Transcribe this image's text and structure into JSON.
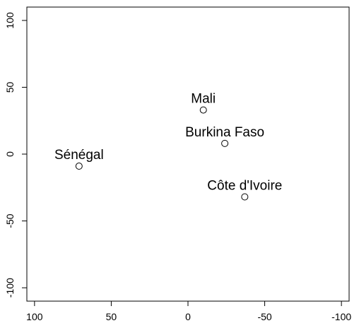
{
  "chart_data": {
    "type": "scatter",
    "title": "",
    "xlabel": "",
    "ylabel": "",
    "xlim": [
      105,
      -105
    ],
    "ylim": [
      -110,
      110
    ],
    "x_ticks": [
      100,
      50,
      0,
      -50,
      -100
    ],
    "x_tick_labels": [
      "100",
      "50",
      "0",
      "-50",
      "-100"
    ],
    "y_ticks": [
      100,
      50,
      0,
      -50,
      -100
    ],
    "y_tick_labels": [
      "100",
      "50",
      "0",
      "-50",
      "-100"
    ],
    "grid": false,
    "points": [
      {
        "label": "Mali",
        "x": -10,
        "y": 33
      },
      {
        "label": "Burkina Faso",
        "x": -24,
        "y": 8
      },
      {
        "label": "Sénégal",
        "x": 71,
        "y": -9
      },
      {
        "label": "Côte d'Ivoire",
        "x": -37,
        "y": -32
      }
    ]
  }
}
